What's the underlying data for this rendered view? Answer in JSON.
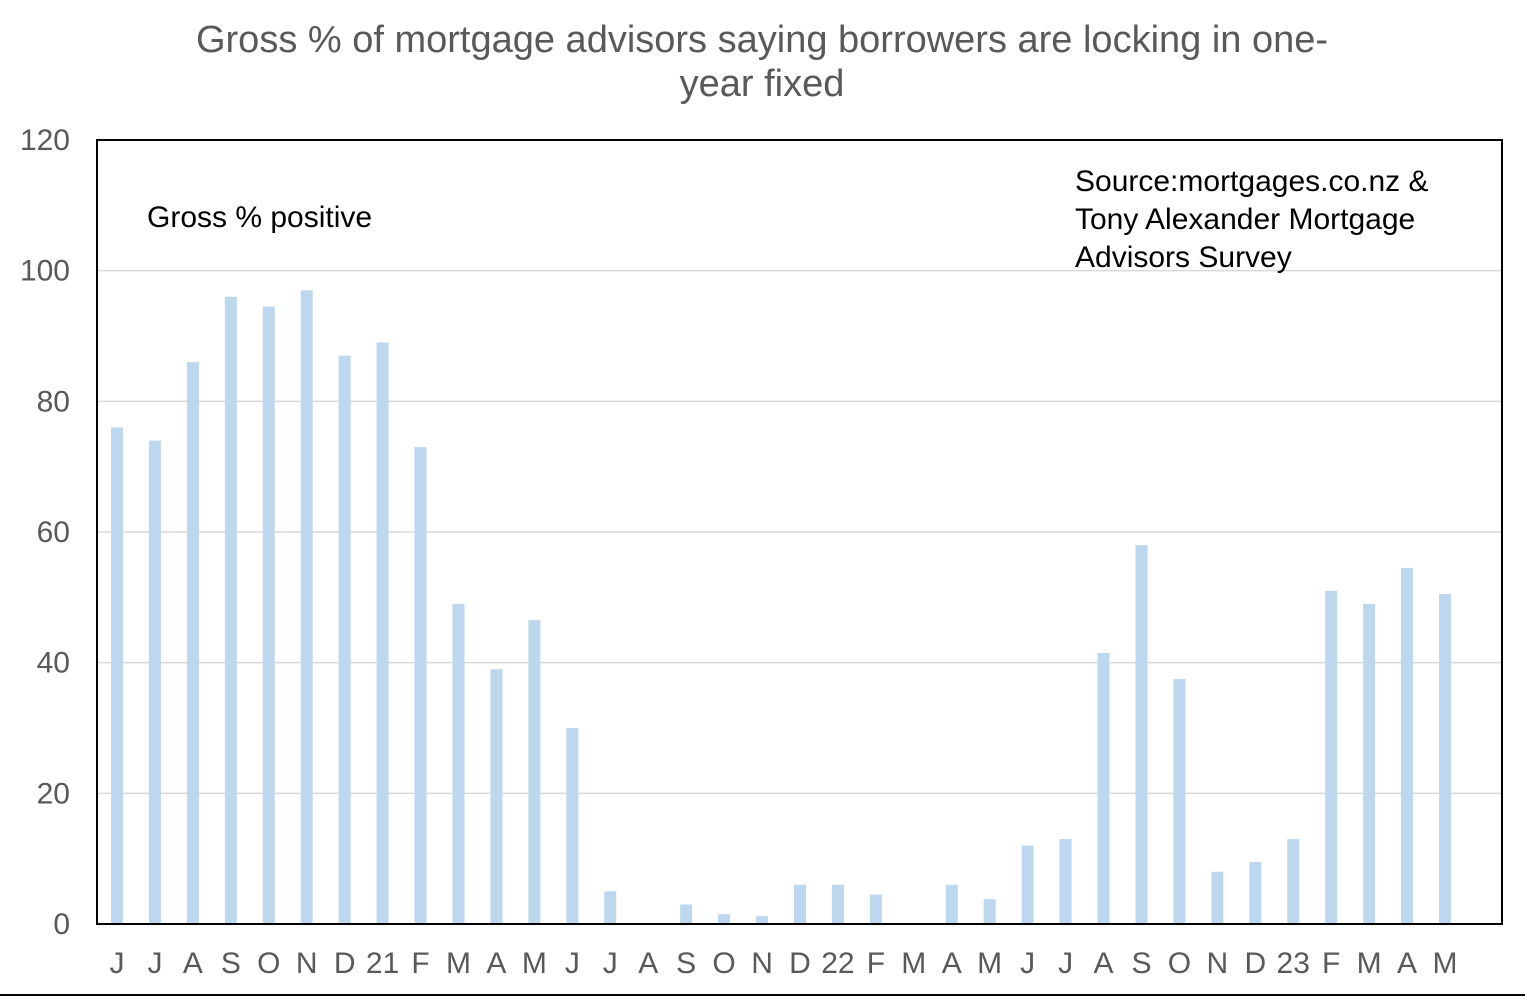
{
  "chart_data": {
    "type": "bar",
    "title_lines": [
      "Gross % of mortgage advisors saying borrowers are locking in one-",
      "year fixed"
    ],
    "annotation": "Gross % positive",
    "source_lines": [
      "Source:mortgages.co.nz  &",
      "Tony Alexander  Mortgage",
      "Advisors Survey"
    ],
    "categories": [
      "J",
      "J",
      "A",
      "S",
      "O",
      "N",
      "D",
      "21",
      "F",
      "M",
      "A",
      "M",
      "J",
      "J",
      "A",
      "S",
      "O",
      "N",
      "D",
      "22",
      "F",
      "M",
      "A",
      "M",
      "J",
      "J",
      "A",
      "S",
      "O",
      "N",
      "D",
      "23",
      "F",
      "M",
      "A",
      "M"
    ],
    "values": [
      76,
      74,
      86,
      96,
      94.5,
      97,
      87,
      89,
      73,
      49,
      39,
      46.5,
      30,
      5,
      0,
      3,
      1.5,
      1.2,
      6,
      6,
      4.5,
      0,
      6,
      3.8,
      12,
      13,
      41.5,
      58,
      37.5,
      8,
      9.5,
      13,
      51,
      49,
      54.5,
      50.5
    ],
    "ylim": [
      0,
      120
    ],
    "yticks": [
      0,
      20,
      40,
      60,
      80,
      100,
      120
    ],
    "grid": true,
    "xlabel": "",
    "ylabel": "",
    "bar_color": "#bdd7ee"
  }
}
